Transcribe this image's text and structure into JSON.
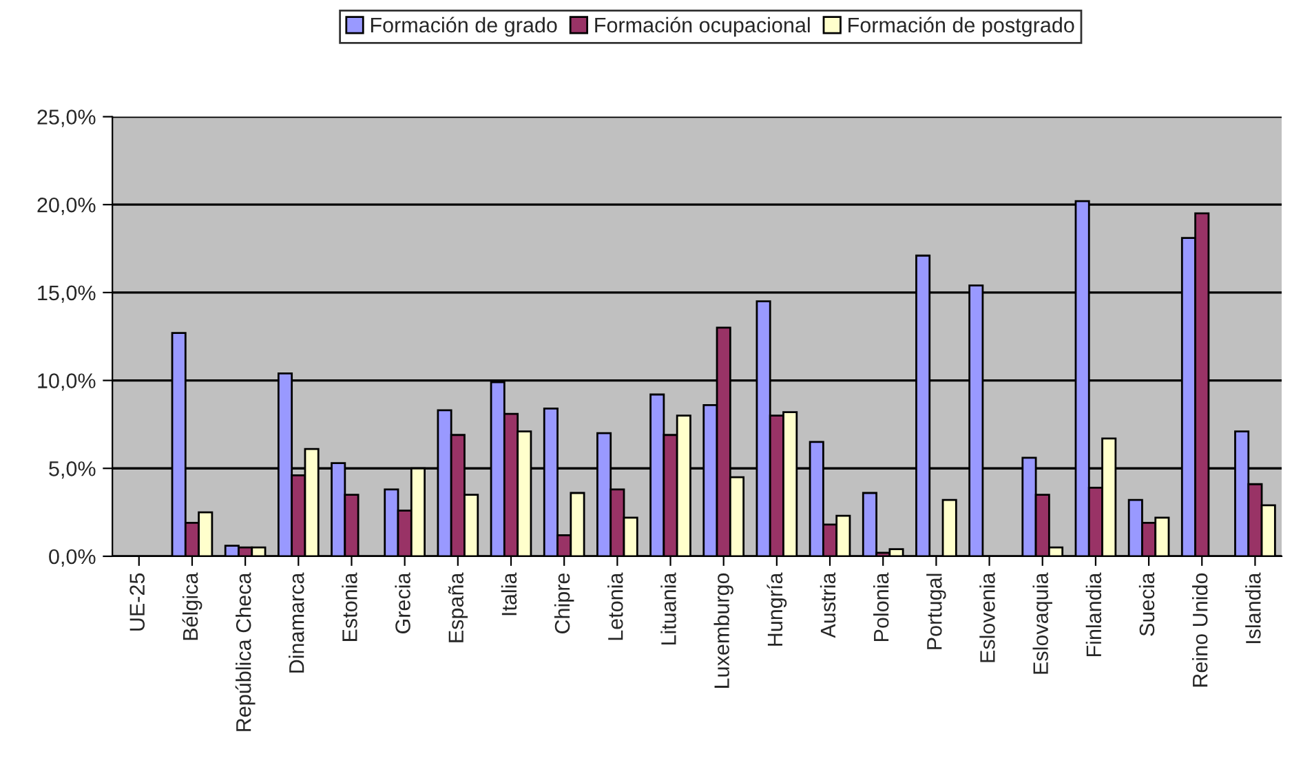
{
  "chart_data": {
    "type": "bar",
    "categories": [
      "UE-25",
      "Bélgica",
      "República Checa",
      "Dinamarca",
      "Estonia",
      "Grecia",
      "España",
      "Italia",
      "Chipre",
      "Letonia",
      "Lituania",
      "Luxemburgo",
      "Hungría",
      "Austria",
      "Polonia",
      "Portugal",
      "Eslovenia",
      "Eslovaquia",
      "Finlandia",
      "Suecia",
      "Reino Unido",
      "Islandia"
    ],
    "series": [
      {
        "name": "Formación de grado",
        "color": "#9999ff",
        "values": [
          null,
          12.7,
          0.6,
          10.4,
          5.3,
          3.8,
          8.3,
          9.9,
          8.4,
          7.0,
          9.2,
          8.6,
          14.5,
          6.5,
          3.6,
          17.1,
          15.4,
          5.6,
          20.2,
          3.2,
          18.1,
          7.1
        ]
      },
      {
        "name": "Formación ocupacional",
        "color": "#993366",
        "values": [
          null,
          1.9,
          0.5,
          4.6,
          3.5,
          2.6,
          6.9,
          8.1,
          1.2,
          3.8,
          6.9,
          13.0,
          8.0,
          1.8,
          0.2,
          null,
          null,
          3.5,
          3.9,
          1.9,
          19.5,
          4.1
        ]
      },
      {
        "name": "Formación de postgrado",
        "color": "#ffffcc",
        "values": [
          null,
          2.5,
          0.5,
          6.1,
          null,
          5.0,
          3.5,
          7.1,
          3.6,
          2.2,
          8.0,
          4.5,
          8.2,
          2.3,
          0.4,
          3.2,
          null,
          0.5,
          6.7,
          2.2,
          null,
          2.9
        ]
      }
    ],
    "ylim": [
      0,
      25
    ],
    "yticks": [
      {
        "value": 0,
        "label": "0,0%"
      },
      {
        "value": 5,
        "label": "5,0%"
      },
      {
        "value": 10,
        "label": "10,0%"
      },
      {
        "value": 15,
        "label": "15,0%"
      },
      {
        "value": 20,
        "label": "20,0%"
      },
      {
        "value": 25,
        "label": "25,0%"
      }
    ],
    "grid": "y",
    "legend": "top"
  }
}
